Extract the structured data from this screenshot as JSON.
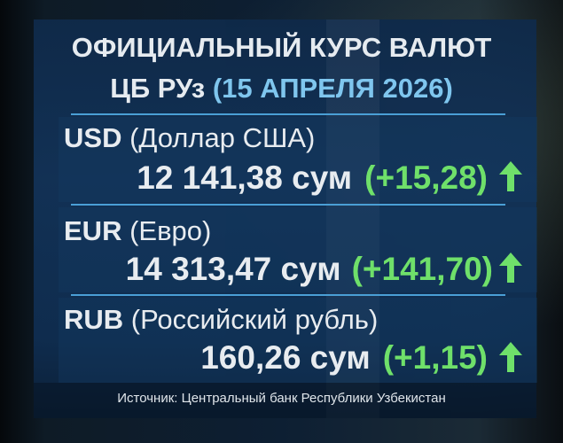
{
  "header": {
    "title_line1": "ОФИЦИАЛЬНЫЙ КУРС ВАЛЮТ",
    "title_line2_prefix": "ЦБ РУз",
    "title_line2_date": "(15 АПРЕЛЯ 2026)"
  },
  "rates": [
    {
      "code": "USD",
      "name": "(Доллар США)",
      "value": "12 141,38 сум",
      "change": "(+15,28)",
      "trend": "up-arrow-icon"
    },
    {
      "code": "EUR",
      "name": "(Евро)",
      "value": "14 313,47 сум",
      "change": "(+141,70)",
      "trend": "up-arrow-icon"
    },
    {
      "code": "RUB",
      "name": "(Российский рубль)",
      "value": "160,26 сум",
      "change": "(+1,15)",
      "trend": "up-arrow-icon"
    }
  ],
  "footer": {
    "source": "Источник: Центральный банк Республики Узбекистан"
  },
  "colors": {
    "accent_date": "#7fc6ee",
    "change_up": "#6fe06a",
    "divider": "#4a9fd6",
    "panel": "#123257"
  }
}
